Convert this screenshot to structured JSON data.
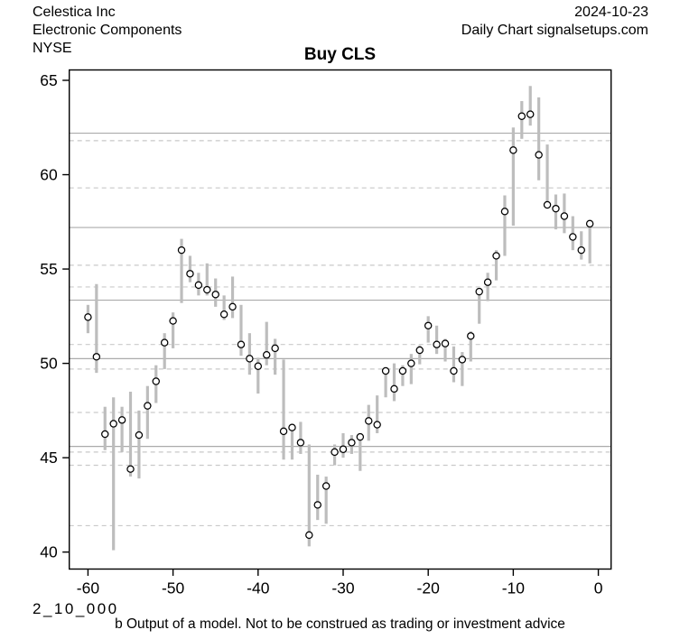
{
  "header": {
    "company": "Celestica Inc",
    "industry": "Electronic Components",
    "exchange": "NYSE",
    "date": "2024-10-23",
    "chart_source": "Daily Chart signalsetups.com"
  },
  "title": "Buy CLS",
  "footer": {
    "model_code": "2_10_000",
    "disclaimer": "b Output of a model. Not to be construed as trading or investment advice"
  },
  "chart_data": {
    "type": "hlc-bar",
    "title": "Buy CLS",
    "xlabel": "",
    "ylabel": "",
    "x_ticks": [
      -60,
      -50,
      -40,
      -30,
      -20,
      -10,
      0
    ],
    "y_ticks": [
      40,
      45,
      50,
      55,
      60,
      65
    ],
    "xlim": [
      -62.2,
      1.5
    ],
    "ylim": [
      39.1,
      65.55
    ],
    "grid": false,
    "legend": "none",
    "levels": {
      "solid": [
        62.2,
        57.2,
        53.35,
        50.25,
        45.6
      ],
      "dashed": [
        61.8,
        59.3,
        55.2,
        54.05,
        51.0,
        49.7,
        47.4,
        45.3,
        44.6,
        41.4
      ]
    },
    "bars": {
      "x": [
        -60,
        -59,
        -58,
        -57,
        -56,
        -55,
        -54,
        -53,
        -52,
        -51,
        -50,
        -49,
        -48,
        -47,
        -46,
        -45,
        -44,
        -43,
        -42,
        -41,
        -40,
        -39,
        -38,
        -37,
        -36,
        -35,
        -34,
        -33,
        -32,
        -31,
        -30,
        -29,
        -28,
        -27,
        -26,
        -25,
        -24,
        -23,
        -22,
        -21,
        -20,
        -19,
        -18,
        -17,
        -16,
        -15,
        -14,
        -13,
        -12,
        -11,
        -10,
        -9,
        -8,
        -7,
        -6,
        -5,
        -4,
        -3,
        -2,
        -1
      ],
      "high": [
        53.1,
        54.2,
        47.7,
        48.2,
        47.7,
        48.5,
        47.5,
        48.8,
        49.9,
        51.6,
        52.7,
        56.6,
        55.7,
        54.8,
        55.3,
        54.5,
        53.6,
        54.6,
        53.1,
        51.6,
        50.3,
        52.2,
        51.3,
        50.2,
        46.8,
        46.9,
        45.7,
        44.1,
        44.0,
        45.7,
        46.3,
        46.2,
        46.3,
        47.8,
        48.3,
        49.7,
        50.0,
        49.9,
        50.5,
        50.95,
        52.5,
        52.0,
        51.3,
        50.9,
        50.6,
        51.7,
        53.9,
        54.8,
        56.0,
        58.9,
        62.5,
        63.9,
        64.7,
        64.1,
        61.6,
        58.95,
        59.0,
        57.8,
        57.0,
        57.6
      ],
      "low": [
        51.6,
        49.5,
        45.4,
        40.1,
        45.3,
        44.0,
        43.9,
        46.0,
        47.9,
        49.7,
        50.8,
        53.2,
        54.3,
        53.6,
        53.6,
        53.0,
        52.3,
        52.4,
        50.4,
        49.4,
        48.4,
        49.9,
        49.4,
        44.9,
        44.9,
        45.2,
        40.3,
        41.7,
        41.5,
        44.6,
        45.0,
        45.2,
        44.3,
        45.9,
        46.3,
        48.2,
        48.0,
        48.8,
        48.9,
        49.95,
        51.1,
        50.5,
        50.1,
        49.0,
        48.8,
        50.1,
        52.1,
        53.3,
        54.4,
        55.7,
        57.3,
        61.9,
        62.6,
        59.7,
        58.4,
        57.1,
        56.9,
        56.0,
        55.5,
        55.3
      ],
      "close": [
        52.45,
        50.35,
        46.25,
        46.8,
        47.0,
        44.4,
        46.2,
        47.75,
        49.05,
        51.1,
        52.25,
        56.0,
        54.75,
        54.15,
        53.9,
        53.65,
        52.6,
        53.0,
        51.0,
        50.25,
        49.85,
        50.45,
        50.8,
        46.4,
        46.6,
        45.8,
        40.9,
        42.5,
        43.5,
        45.3,
        45.45,
        45.8,
        46.1,
        46.95,
        46.75,
        49.6,
        48.65,
        49.6,
        50.0,
        50.7,
        52.0,
        51.0,
        51.05,
        49.6,
        50.2,
        51.45,
        53.8,
        54.3,
        55.7,
        58.05,
        61.3,
        63.1,
        63.2,
        61.05,
        58.4,
        58.2,
        57.8,
        56.7,
        56.0,
        57.4
      ]
    },
    "colors": {
      "range_bar": "#bdbdbd",
      "solid_level": "#ababab",
      "dashed_level": "#c9c9c9",
      "close_marker_stroke": "#000000",
      "close_marker_fill": "#ffffff",
      "axis": "#000000"
    }
  }
}
